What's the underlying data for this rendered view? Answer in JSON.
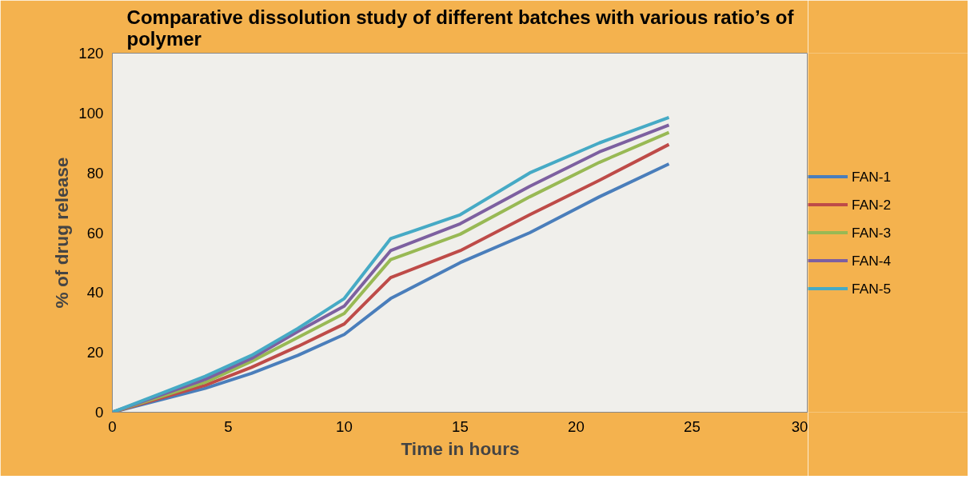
{
  "chart_data": {
    "type": "line",
    "title": "Comparative dissolution study of different batches with various ratio’s of\npolymer",
    "xlabel": "Time in hours",
    "ylabel": "% of drug release",
    "x": [
      0,
      2,
      4,
      6,
      8,
      10,
      12,
      15,
      18,
      21,
      24
    ],
    "series": [
      {
        "name": "FAN-1",
        "color": "#4a7ebb",
        "values": [
          0,
          4,
          8,
          13,
          19,
          26,
          38,
          50,
          60,
          72,
          83
        ]
      },
      {
        "name": "FAN-2",
        "color": "#be4b48",
        "values": [
          0,
          4.5,
          9,
          15,
          22,
          29.5,
          45,
          54,
          66,
          77.5,
          89.5
        ]
      },
      {
        "name": "FAN-3",
        "color": "#98b954",
        "values": [
          0,
          5,
          10,
          17,
          25,
          33,
          51,
          59.5,
          72,
          83.5,
          93.5
        ]
      },
      {
        "name": "FAN-4",
        "color": "#7d60a0",
        "values": [
          0,
          5.5,
          11,
          18,
          27,
          35.5,
          54,
          63,
          75.5,
          87,
          96
        ]
      },
      {
        "name": "FAN-5",
        "color": "#46aac5",
        "values": [
          0,
          6,
          12,
          19,
          28,
          38,
          58,
          66,
          80,
          90,
          98.5
        ]
      }
    ],
    "xlim": [
      0,
      30
    ],
    "xticks": [
      0,
      5,
      10,
      15,
      20,
      25,
      30
    ],
    "ylim": [
      0,
      120
    ],
    "yticks": [
      0,
      20,
      40,
      60,
      80,
      100,
      120
    ],
    "grid": false,
    "legend": "right",
    "marker": "none",
    "line_style": "solid"
  }
}
